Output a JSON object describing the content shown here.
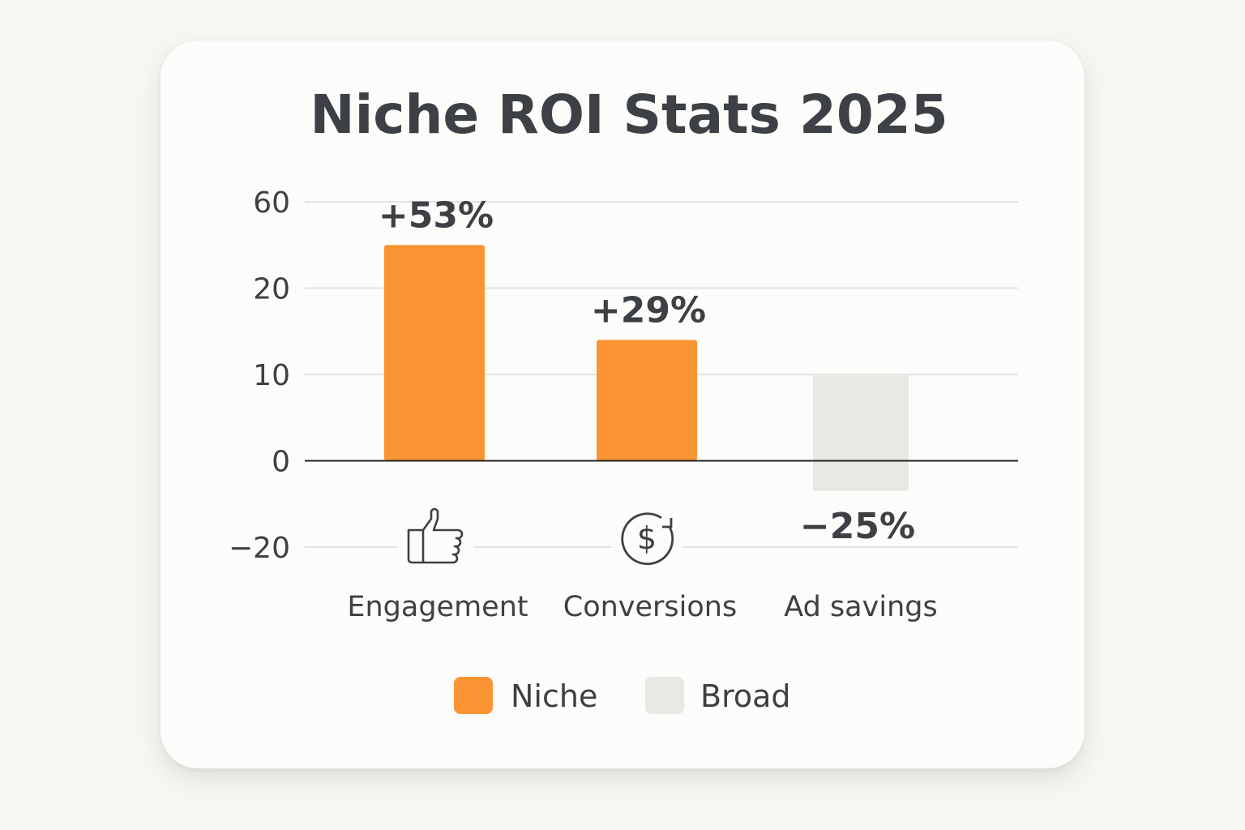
{
  "chart_data": {
    "type": "bar",
    "title": "Niche ROI Stats 2025",
    "categories": [
      "Engagement",
      "Conversions",
      "Ad savings"
    ],
    "category_icons": [
      "thumbs-up-icon",
      "dollar-refresh-icon",
      null
    ],
    "y_ticks": [
      60,
      20,
      10,
      0,
      -20
    ],
    "y_tick_labels": [
      "60",
      "20",
      "10",
      "0",
      "−20"
    ],
    "grid": true,
    "bars": [
      {
        "category": "Engagement",
        "series": "Niche",
        "from": 0,
        "to": 40,
        "label": "+53%"
      },
      {
        "category": "Conversions",
        "series": "Niche",
        "from": 0,
        "to": 14,
        "label": "+29%"
      },
      {
        "category": "Ad savings",
        "series": "Broad",
        "from": -7,
        "to": 10,
        "label": "−25%"
      }
    ],
    "legend": {
      "placement": "bottom",
      "items": [
        {
          "name": "Niche",
          "color": "#fb9433"
        },
        {
          "name": "Broad",
          "color": "#e9e8e4"
        }
      ]
    },
    "colors": {
      "niche": "#fb9433",
      "broad": "#e9e8e4",
      "text": "#3d4044",
      "grid": "#e2e2e0",
      "axis": "#222222"
    }
  }
}
